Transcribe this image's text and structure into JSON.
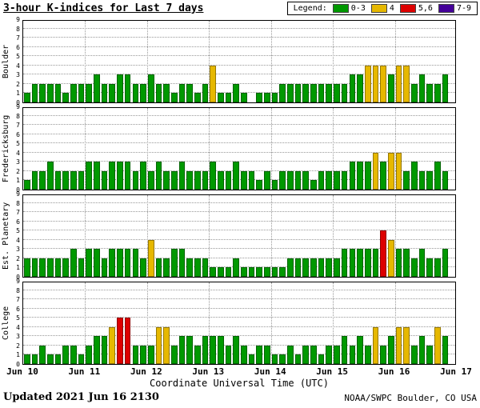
{
  "title": "3-hour K-indices for Last 7 days",
  "legend": {
    "label": "Legend:",
    "items": [
      {
        "label": "0-3",
        "color": "#009900"
      },
      {
        "label": "4",
        "color": "#e6b800"
      },
      {
        "label": "5,6",
        "color": "#dd0000"
      },
      {
        "label": "7-9",
        "color": "#440099"
      }
    ]
  },
  "footer": {
    "updated_label": "Updated",
    "updated_value": "2021 Jun 16 2130",
    "credit": "NOAA/SWPC Boulder, CO USA"
  },
  "chart_data": {
    "type": "bar",
    "title": "3-hour K-indices for Last 7 days",
    "xlabel": "Coordinate Universal Time (UTC)",
    "x_tick_labels": [
      "Jun 10",
      "Jun 11",
      "Jun 12",
      "Jun 13",
      "Jun 14",
      "Jun 15",
      "Jun 16",
      "Jun 17"
    ],
    "ylim": [
      0,
      9
    ],
    "y_ticks": [
      0,
      1,
      2,
      3,
      4,
      5,
      6,
      7,
      8,
      9
    ],
    "days": 7,
    "bars_per_day": 8,
    "interval_hours": 3,
    "grid": true,
    "legend_position": "top-right",
    "color_thresholds": [
      {
        "max": 3,
        "color": "#009900"
      },
      {
        "max": 4,
        "color": "#e6b800"
      },
      {
        "max": 6,
        "color": "#dd0000"
      },
      {
        "max": 9,
        "color": "#440099"
      }
    ],
    "series": [
      {
        "name": "Boulder",
        "values": [
          1,
          2,
          2,
          2,
          2,
          1,
          2,
          2,
          2,
          3,
          2,
          2,
          3,
          3,
          2,
          2,
          3,
          2,
          2,
          1,
          2,
          2,
          1,
          2,
          4,
          1,
          1,
          2,
          1,
          0,
          1,
          1,
          1,
          2,
          2,
          2,
          2,
          2,
          2,
          2,
          2,
          2,
          3,
          3,
          4,
          4,
          4,
          3,
          4,
          4,
          2,
          3,
          2,
          2,
          3
        ]
      },
      {
        "name": "Fredericksburg",
        "values": [
          1,
          2,
          2,
          3,
          2,
          2,
          2,
          2,
          3,
          3,
          2,
          3,
          3,
          3,
          2,
          3,
          2,
          3,
          2,
          2,
          3,
          2,
          2,
          2,
          3,
          2,
          2,
          3,
          2,
          2,
          1,
          2,
          1,
          2,
          2,
          2,
          2,
          1,
          2,
          2,
          2,
          2,
          3,
          3,
          3,
          4,
          3,
          4,
          4,
          2,
          3,
          2,
          2,
          3,
          2
        ]
      },
      {
        "name": "Est. Planetary",
        "values": [
          2,
          2,
          2,
          2,
          2,
          2,
          3,
          2,
          3,
          3,
          2,
          3,
          3,
          3,
          3,
          2,
          4,
          2,
          2,
          3,
          3,
          2,
          2,
          2,
          1,
          1,
          1,
          2,
          1,
          1,
          1,
          1,
          1,
          1,
          2,
          2,
          2,
          2,
          2,
          2,
          2,
          3,
          3,
          3,
          3,
          3,
          5,
          4,
          3,
          3,
          2,
          3,
          2,
          2,
          3
        ]
      },
      {
        "name": "College",
        "values": [
          1,
          1,
          2,
          1,
          1,
          2,
          2,
          1,
          2,
          3,
          3,
          4,
          5,
          5,
          2,
          2,
          2,
          4,
          4,
          2,
          3,
          3,
          2,
          3,
          3,
          3,
          2,
          3,
          2,
          1,
          2,
          2,
          1,
          1,
          2,
          1,
          2,
          2,
          1,
          2,
          2,
          3,
          2,
          3,
          2,
          4,
          2,
          3,
          4,
          4,
          2,
          3,
          2,
          4,
          3
        ]
      }
    ]
  }
}
